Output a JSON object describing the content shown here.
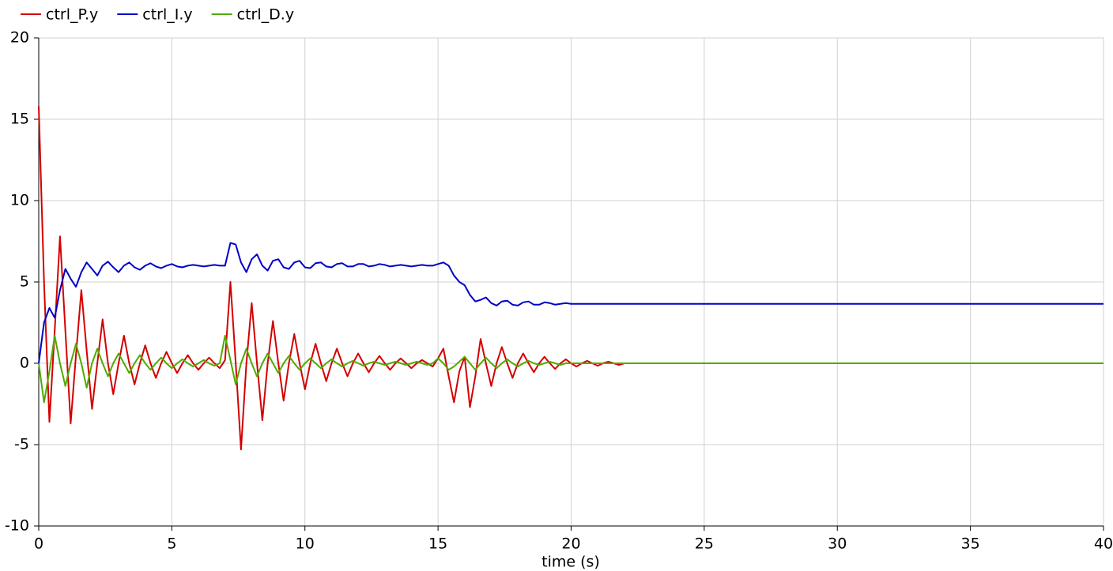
{
  "chart_data": {
    "type": "line",
    "xlabel": "time (s)",
    "x": [
      0,
      0.2,
      0.4,
      0.6,
      0.8,
      1,
      1.2,
      1.4,
      1.6,
      1.8,
      2,
      2.2,
      2.4,
      2.6,
      2.8,
      3,
      3.2,
      3.4,
      3.6,
      3.8,
      4,
      4.2,
      4.4,
      4.6,
      4.8,
      5,
      5.2,
      5.4,
      5.6,
      5.8,
      6,
      6.2,
      6.4,
      6.6,
      6.8,
      7,
      7.2,
      7.4,
      7.6,
      7.8,
      8,
      8.2,
      8.4,
      8.6,
      8.8,
      9,
      9.2,
      9.4,
      9.6,
      9.8,
      10,
      10.2,
      10.4,
      10.6,
      10.8,
      11,
      11.2,
      11.4,
      11.6,
      11.8,
      12,
      12.2,
      12.4,
      12.6,
      12.8,
      13,
      13.2,
      13.4,
      13.6,
      13.8,
      14,
      14.2,
      14.4,
      14.6,
      14.8,
      15,
      15.2,
      15.4,
      15.6,
      15.8,
      16,
      16.2,
      16.4,
      16.6,
      16.8,
      17,
      17.2,
      17.4,
      17.6,
      17.8,
      18,
      18.2,
      18.4,
      18.6,
      18.8,
      19,
      19.2,
      19.4,
      19.6,
      19.8,
      20,
      20.2,
      20.4,
      20.6,
      20.8,
      21,
      21.2,
      21.4,
      21.6,
      21.8,
      22,
      22.2,
      22.4,
      22.6,
      22.8,
      23,
      23.2,
      23.4,
      23.6,
      23.8,
      24,
      24.2,
      24.4,
      24.6,
      24.8,
      25,
      25.2,
      25.4,
      25.6,
      25.8,
      26,
      30,
      35,
      40
    ],
    "series": [
      {
        "name": "ctrl_P.y",
        "color": "#d40000",
        "values": [
          15.8,
          5,
          -3.6,
          2,
          7.8,
          2,
          -3.7,
          0.5,
          4.5,
          0.8,
          -2.8,
          0,
          2.7,
          0,
          -1.9,
          0,
          1.7,
          0,
          -1.3,
          0,
          1.1,
          0,
          -0.9,
          0,
          0.7,
          0,
          -0.6,
          0,
          0.5,
          0,
          -0.4,
          0,
          0.35,
          0,
          -0.3,
          0.2,
          5,
          0,
          -5.3,
          0,
          3.7,
          0,
          -3.5,
          0,
          2.6,
          0,
          -2.3,
          0,
          1.8,
          0,
          -1.6,
          0,
          1.2,
          0,
          -1.1,
          0,
          0.9,
          0,
          -0.8,
          0,
          0.6,
          0,
          -0.55,
          0,
          0.45,
          0,
          -0.4,
          0,
          0.3,
          0,
          -0.3,
          0,
          0.2,
          0,
          -0.2,
          0.3,
          0.9,
          -0.8,
          -2.4,
          -0.5,
          0.4,
          -2.7,
          -0.8,
          1.5,
          0,
          -1.4,
          0,
          1,
          0,
          -0.9,
          0,
          0.6,
          0,
          -0.55,
          0,
          0.4,
          0,
          -0.35,
          0,
          0.25,
          0,
          -0.2,
          0,
          0.15,
          0,
          -0.15,
          0,
          0.1,
          0,
          -0.1,
          0,
          0,
          0,
          0,
          0,
          0,
          0,
          0,
          0,
          0,
          0,
          0,
          0,
          0,
          0,
          0,
          0,
          0,
          0,
          0,
          0,
          0,
          0,
          0
        ]
      },
      {
        "name": "ctrl_I.y",
        "color": "#0000c8",
        "values": [
          0,
          2.5,
          3.4,
          2.8,
          4.5,
          5.8,
          5.2,
          4.7,
          5.6,
          6.2,
          5.8,
          5.4,
          6,
          6.25,
          5.9,
          5.6,
          6,
          6.2,
          5.9,
          5.75,
          6,
          6.15,
          5.95,
          5.85,
          6,
          6.1,
          5.95,
          5.9,
          6,
          6.05,
          6,
          5.95,
          6,
          6.05,
          6,
          6,
          7.4,
          7.3,
          6.2,
          5.6,
          6.4,
          6.7,
          6,
          5.7,
          6.3,
          6.4,
          5.9,
          5.8,
          6.2,
          6.3,
          5.9,
          5.85,
          6.15,
          6.2,
          5.95,
          5.9,
          6.1,
          6.15,
          5.95,
          5.95,
          6.1,
          6.1,
          5.95,
          6,
          6.1,
          6.05,
          5.95,
          6,
          6.05,
          6,
          5.95,
          6,
          6.05,
          6,
          6,
          6.1,
          6.2,
          6,
          5.4,
          5,
          4.8,
          4.2,
          3.8,
          3.9,
          4.05,
          3.7,
          3.55,
          3.8,
          3.85,
          3.6,
          3.55,
          3.75,
          3.8,
          3.6,
          3.6,
          3.75,
          3.7,
          3.6,
          3.65,
          3.7,
          3.65,
          3.65,
          3.65,
          3.65,
          3.65,
          3.65,
          3.65,
          3.65,
          3.65,
          3.65,
          3.65,
          3.65,
          3.65,
          3.65,
          3.65,
          3.65,
          3.65,
          3.65,
          3.65,
          3.65,
          3.65,
          3.65,
          3.65,
          3.65,
          3.65,
          3.65,
          3.65,
          3.65,
          3.65,
          3.65,
          3.65,
          3.65,
          3.65,
          3.65
        ]
      },
      {
        "name": "ctrl_D.y",
        "color": "#50aa00",
        "values": [
          0,
          -2.4,
          -0.5,
          1.7,
          0,
          -1.4,
          0,
          1.2,
          0,
          -1.5,
          0,
          0.9,
          0,
          -0.8,
          0,
          0.6,
          0,
          -0.6,
          0,
          0.5,
          0,
          -0.4,
          0,
          0.35,
          0,
          -0.3,
          0,
          0.25,
          0,
          -0.2,
          0,
          0.2,
          0,
          -0.15,
          0,
          1.7,
          0.2,
          -1.3,
          0,
          0.9,
          0,
          -0.8,
          0,
          0.6,
          0,
          -0.6,
          0,
          0.45,
          0,
          -0.4,
          0,
          0.3,
          0,
          -0.3,
          0,
          0.25,
          0,
          -0.2,
          0,
          0.15,
          0,
          -0.15,
          0,
          0.1,
          0,
          -0.1,
          0,
          0.1,
          0,
          -0.1,
          0,
          0.1,
          0,
          -0.1,
          0,
          0.3,
          0,
          -0.4,
          -0.2,
          0.1,
          0.4,
          0,
          -0.4,
          0,
          0.35,
          0,
          -0.3,
          0,
          0.25,
          0,
          -0.2,
          0,
          0.15,
          0,
          -0.1,
          0,
          0.1,
          0,
          -0.1,
          0,
          0,
          0,
          0,
          0,
          0,
          0,
          0,
          0,
          0,
          0,
          0,
          0,
          0,
          0,
          0,
          0,
          0,
          0,
          0,
          0,
          0,
          0,
          0,
          0,
          0,
          0,
          0,
          0,
          0,
          0,
          0,
          0,
          0,
          0
        ]
      }
    ],
    "xlim": [
      0,
      40
    ],
    "xticks": [
      0,
      5,
      10,
      15,
      20,
      25,
      30,
      35,
      40
    ],
    "ylim": [
      -10,
      20
    ],
    "yticks": [
      -10,
      -5,
      0,
      5,
      10,
      15,
      20
    ],
    "grid": true,
    "legend": "top-left"
  }
}
